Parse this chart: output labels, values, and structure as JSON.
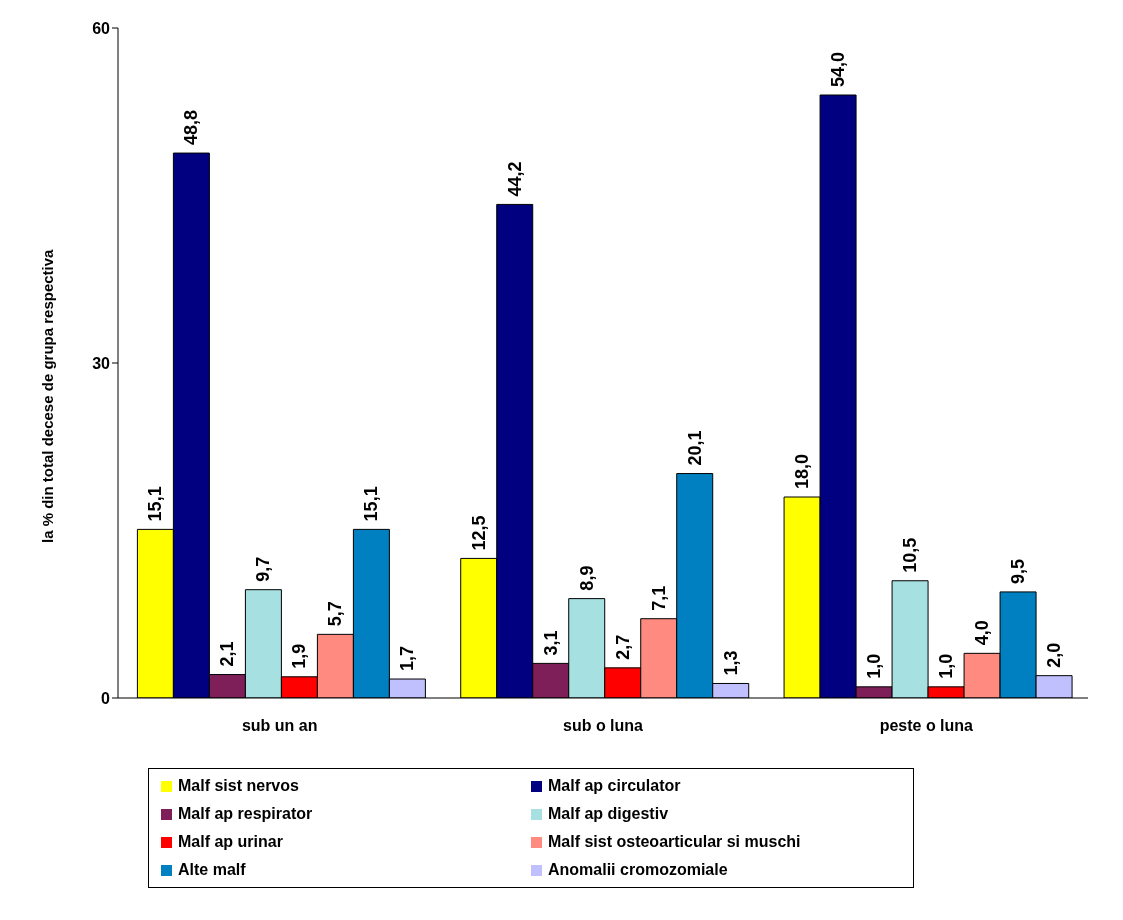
{
  "chart_data": {
    "type": "bar",
    "ylabel": "la % din total decese de grupa respectiva",
    "categories": [
      "sub un an",
      "sub o luna",
      "peste o luna"
    ],
    "ylim": [
      0,
      60
    ],
    "yticks": [
      0,
      30,
      60
    ],
    "grid": false,
    "legend": "bottom",
    "series": [
      {
        "name": "Malf sist nervos",
        "color": "#ffff00",
        "values": [
          15.1,
          12.5,
          18.0
        ],
        "value_labels": [
          "15,1",
          "12,5",
          "18,0"
        ]
      },
      {
        "name": "Malf ap circulator",
        "color": "#000080",
        "values": [
          48.8,
          44.2,
          54.0
        ],
        "value_labels": [
          "48,8",
          "44,2",
          "54,0"
        ]
      },
      {
        "name": "Malf ap respirator",
        "color": "#7f1f5a",
        "values": [
          2.1,
          3.1,
          1.0
        ],
        "value_labels": [
          "2,1",
          "3,1",
          "1,0"
        ]
      },
      {
        "name": "Malf ap digestiv",
        "color": "#a6e0e0",
        "values": [
          9.7,
          8.9,
          10.5
        ],
        "value_labels": [
          "9,7",
          "8,9",
          "10,5"
        ]
      },
      {
        "name": "Malf ap urinar",
        "color": "#ff0000",
        "values": [
          1.9,
          2.7,
          1.0
        ],
        "value_labels": [
          "1,9",
          "2,7",
          "1,0"
        ]
      },
      {
        "name": "Malf sist osteoarticular si muschi",
        "color": "#ff8a80",
        "values": [
          5.7,
          7.1,
          4.0
        ],
        "value_labels": [
          "5,7",
          "7,1",
          "4,0"
        ]
      },
      {
        "name": "Alte malf",
        "color": "#0080c0",
        "values": [
          15.1,
          20.1,
          9.5
        ],
        "value_labels": [
          "15,1",
          "20,1",
          "9,5"
        ]
      },
      {
        "name": "Anomalii cromozomiale",
        "color": "#c0c0ff",
        "values": [
          1.7,
          1.3,
          2.0
        ],
        "value_labels": [
          "1,7",
          "1,3",
          "2,0"
        ]
      }
    ]
  }
}
